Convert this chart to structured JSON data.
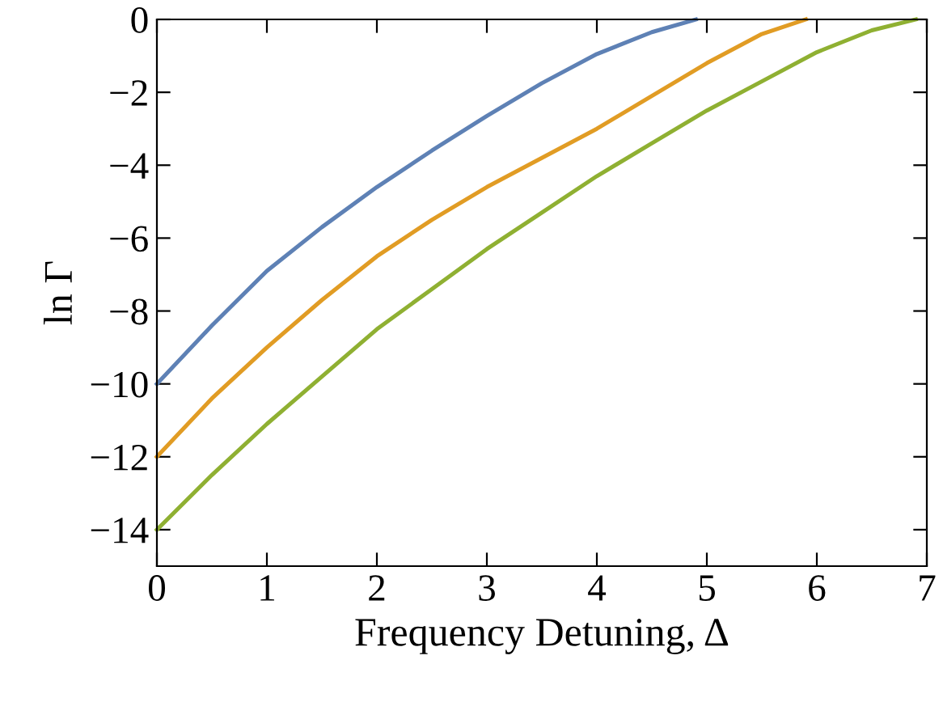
{
  "chart_data": {
    "type": "line",
    "xlabel": "Frequency Detuning, Δ",
    "ylabel": "ln Γ",
    "xlim": [
      0,
      7
    ],
    "ylim": [
      -15,
      0
    ],
    "xticks": [
      0,
      1,
      2,
      3,
      4,
      5,
      6,
      7
    ],
    "yticks": [
      {
        "value": -14,
        "label": "−14"
      },
      {
        "value": -12,
        "label": "−12"
      },
      {
        "value": -10,
        "label": "−10"
      },
      {
        "value": -8,
        "label": "−8"
      },
      {
        "value": -6,
        "label": "−6"
      },
      {
        "value": -4,
        "label": "−4"
      },
      {
        "value": -2,
        "label": "−2"
      },
      0
    ],
    "grid": false,
    "legend": false,
    "marker": "none",
    "line_style": "solid",
    "series": [
      {
        "color": "#5e81b5",
        "x": [
          0,
          0.5,
          1,
          1.5,
          2,
          2.5,
          3,
          3.5,
          4,
          4.5,
          4.9
        ],
        "values": [
          -10,
          -8.4,
          -6.9,
          -5.7,
          -4.6,
          -3.6,
          -2.65,
          -1.75,
          -0.95,
          -0.35,
          0
        ]
      },
      {
        "color": "#e19c24",
        "x": [
          0,
          0.5,
          1,
          1.5,
          2,
          2.5,
          3,
          3.5,
          4,
          4.5,
          5,
          5.5,
          5.9
        ],
        "values": [
          -12,
          -10.4,
          -9.0,
          -7.7,
          -6.5,
          -5.5,
          -4.6,
          -3.8,
          -3.0,
          -2.1,
          -1.2,
          -0.4,
          0
        ]
      },
      {
        "color": "#8fb032",
        "x": [
          0,
          0.5,
          1,
          1.5,
          2,
          2.5,
          3,
          3.5,
          4,
          4.5,
          5,
          5.5,
          6,
          6.5,
          6.9
        ],
        "values": [
          -14,
          -12.5,
          -11.1,
          -9.8,
          -8.5,
          -7.4,
          -6.3,
          -5.3,
          -4.3,
          -3.4,
          -2.5,
          -1.7,
          -0.9,
          -0.3,
          0
        ]
      }
    ]
  }
}
